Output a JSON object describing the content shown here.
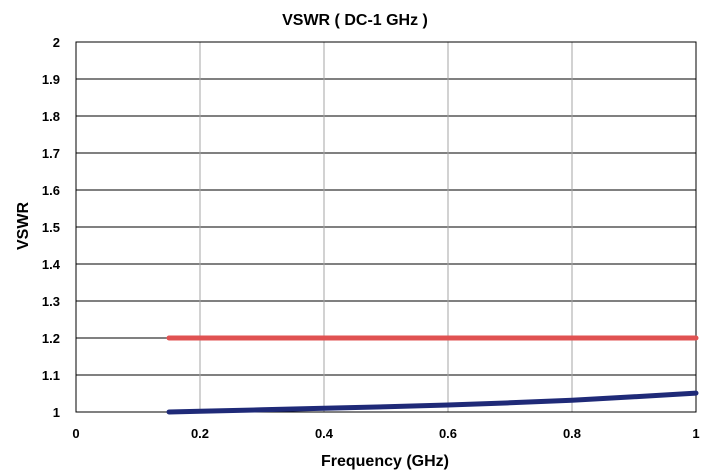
{
  "chart_data": {
    "type": "line",
    "title": "VSWR ( DC-1 GHz )",
    "xlabel": "Frequency (GHz)",
    "ylabel": "VSWR",
    "xlim": [
      0,
      1
    ],
    "ylim": [
      1,
      2
    ],
    "x_ticks": [
      0,
      0.2,
      0.4,
      0.6,
      0.8,
      1
    ],
    "x_tick_labels": [
      "0",
      "0.2",
      "0.4",
      "0.6",
      "0.8",
      "1"
    ],
    "y_ticks": [
      1,
      1.1,
      1.2,
      1.3,
      1.4,
      1.5,
      1.6,
      1.7,
      1.8,
      1.9,
      2
    ],
    "y_tick_labels": [
      "1",
      "1.1",
      "1.2",
      "1.3",
      "1.4",
      "1.5",
      "1.6",
      "1.7",
      "1.8",
      "1.9",
      "2"
    ],
    "grid": true,
    "legend": false,
    "series": [
      {
        "color": "#1f2a78",
        "x": [
          0.15,
          0.2,
          0.3,
          0.4,
          0.5,
          0.6,
          0.7,
          0.8,
          0.9,
          1.0
        ],
        "y": [
          1.0,
          1.002,
          1.006,
          1.01,
          1.014,
          1.019,
          1.025,
          1.032,
          1.041,
          1.051
        ]
      },
      {
        "color": "#e05252",
        "x": [
          0.15,
          1.0
        ],
        "y": [
          1.2,
          1.2
        ]
      }
    ]
  }
}
